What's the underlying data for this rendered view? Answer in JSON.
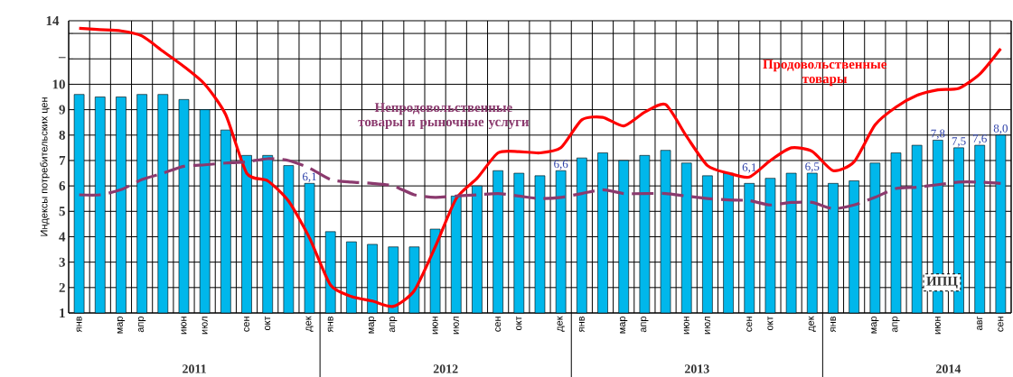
{
  "chart_data": {
    "type": "bar",
    "ylabel": "Индексы потребительских цен",
    "categories": [
      "янв",
      null,
      "мар",
      "апр",
      null,
      "июн",
      "июл",
      null,
      "сен",
      "окт",
      null,
      "дек",
      "янв",
      null,
      "мар",
      "апр",
      null,
      "июн",
      "июл",
      null,
      "сен",
      "окт",
      null,
      "дек",
      "янв",
      null,
      "мар",
      "апр",
      null,
      "июн",
      "июл",
      null,
      "сен",
      "окт",
      null,
      "дек",
      "янв",
      null,
      "мар",
      "апр",
      null,
      "июн",
      null,
      "авг",
      "сен"
    ],
    "series": [
      {
        "name": "ИПЦ",
        "type": "bar",
        "color": "#00b7eb",
        "values": [
          9.6,
          9.5,
          9.5,
          9.6,
          9.6,
          9.4,
          9.0,
          8.2,
          7.2,
          7.2,
          6.8,
          6.1,
          4.2,
          3.8,
          3.7,
          3.6,
          3.6,
          4.3,
          5.6,
          6.0,
          6.6,
          6.5,
          6.4,
          6.6,
          7.1,
          7.3,
          7.0,
          7.2,
          7.4,
          6.9,
          6.4,
          6.5,
          6.1,
          6.3,
          6.5,
          6.5,
          6.1,
          6.2,
          6.9,
          7.3,
          7.6,
          7.8,
          7.5,
          7.6,
          8.0
        ],
        "value_labels": [
          null,
          null,
          null,
          null,
          null,
          null,
          null,
          null,
          null,
          null,
          null,
          "6,1",
          null,
          null,
          null,
          null,
          null,
          null,
          null,
          null,
          null,
          null,
          null,
          "6,6",
          null,
          null,
          null,
          null,
          null,
          null,
          null,
          null,
          "6,1",
          null,
          null,
          "6,5",
          null,
          null,
          null,
          null,
          null,
          "7,8",
          "7,5",
          "7,6",
          "8,0"
        ]
      },
      {
        "name": "Продовольственные товары",
        "type": "line",
        "color": "#ff0000",
        "values": [
          12.2,
          12.15,
          12.1,
          11.9,
          11.3,
          10.7,
          10.0,
          8.8,
          6.5,
          6.2,
          5.4,
          3.95,
          2.1,
          1.65,
          1.47,
          1.26,
          1.88,
          3.6,
          5.5,
          6.3,
          7.3,
          7.35,
          7.3,
          7.5,
          8.6,
          8.7,
          8.36,
          8.9,
          9.2,
          7.95,
          6.8,
          6.5,
          6.35,
          7.0,
          7.5,
          7.36,
          6.6,
          6.95,
          8.4,
          9.1,
          9.56,
          9.78,
          9.84,
          10.4,
          11.4
        ]
      },
      {
        "name": "Непродовольственные товары и рыночные услуги",
        "type": "line",
        "color": "#8b3a6e",
        "line_style": "dashed",
        "values": [
          5.65,
          5.65,
          5.85,
          6.25,
          6.5,
          6.77,
          6.83,
          6.9,
          6.95,
          7.07,
          7.0,
          6.7,
          6.25,
          6.15,
          6.1,
          6.0,
          5.65,
          5.55,
          5.6,
          5.65,
          5.7,
          5.6,
          5.5,
          5.55,
          5.7,
          5.85,
          5.7,
          5.7,
          5.7,
          5.6,
          5.5,
          5.45,
          5.42,
          5.25,
          5.35,
          5.35,
          5.1,
          5.25,
          5.55,
          5.9,
          5.95,
          6.05,
          6.15,
          6.15,
          6.1
        ]
      }
    ],
    "ylim": [
      1,
      12.5
    ],
    "yticks": [
      1,
      2,
      3,
      4,
      5,
      6,
      7,
      8,
      9,
      10,
      {
        "value": 11,
        "label": "–"
      },
      {
        "value": 12,
        "label": null
      }
    ],
    "grid": true,
    "legend": false,
    "marker": "none",
    "annotations": [
      "14",
      "2011",
      "2012",
      "2013",
      "2014"
    ]
  }
}
